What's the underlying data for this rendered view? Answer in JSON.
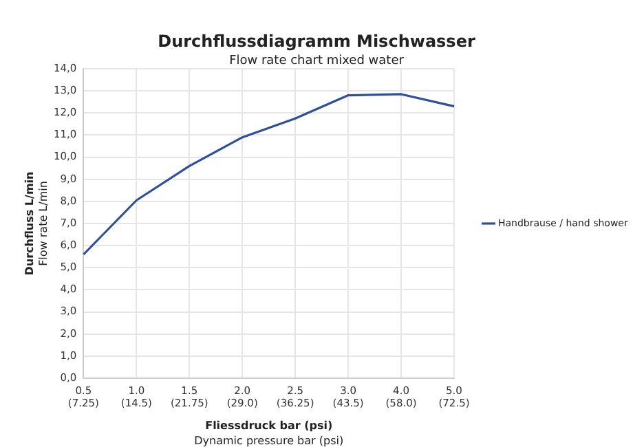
{
  "chart_data": {
    "type": "line",
    "title": "Durchflussdiagramm Mischwasser",
    "subtitle": "Flow rate chart mixed water",
    "xlabel": "Fliessdruck bar (psi)\nDynamic pressure bar (psi)",
    "ylabel": "Durchfluss L/min\nFlow rate L/min",
    "categories": [
      "0.5\n(7.25)",
      "1.0\n(14.5)",
      "1.5\n(21.75)",
      "2.0\n(29.0)",
      "2.5\n(36.25)",
      "3.0\n(43.5)",
      "4.0\n(58.0)",
      "5.0\n(72.5)"
    ],
    "series": [
      {
        "name": "Handbrause / hand shower",
        "color": "#2f4f9a",
        "values": [
          5.6,
          8.05,
          9.6,
          10.9,
          11.75,
          12.8,
          12.85,
          12.3
        ]
      }
    ],
    "ylim": [
      0,
      14
    ],
    "yticks": [
      {
        "value": 0,
        "label": "0,0"
      },
      {
        "value": 1,
        "label": "1,0"
      },
      {
        "value": 2,
        "label": "2,0"
      },
      {
        "value": 3,
        "label": "3,0"
      },
      {
        "value": 4,
        "label": "4,0"
      },
      {
        "value": 5,
        "label": "5,0"
      },
      {
        "value": 6,
        "label": "6,0"
      },
      {
        "value": 7,
        "label": "7,0"
      },
      {
        "value": 8,
        "label": "8,0"
      },
      {
        "value": 9,
        "label": "9,0"
      },
      {
        "value": 10,
        "label": "10,0"
      },
      {
        "value": 11,
        "label": "11,0"
      },
      {
        "value": 12,
        "label": "12,0"
      },
      {
        "value": 13,
        "label": "13,0"
      },
      {
        "value": 14,
        "label": "14,0"
      }
    ],
    "grid": true,
    "legend": "right",
    "marker": "none",
    "line_style": "solid"
  }
}
